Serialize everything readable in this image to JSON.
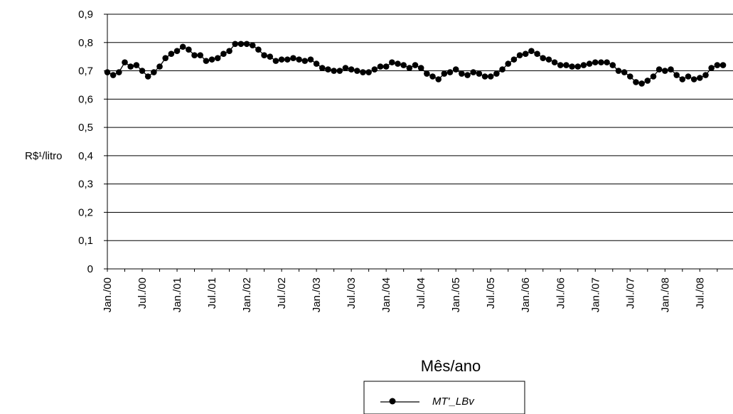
{
  "chart_data": {
    "type": "line",
    "title": "",
    "xlabel": "Mês/ano",
    "ylabel": "R$¹/litro",
    "ylim": [
      0,
      0.9
    ],
    "y_ticks": [
      "0",
      "0,1",
      "0,2",
      "0,3",
      "0,4",
      "0,5",
      "0,6",
      "0,7",
      "0,8",
      "0,9"
    ],
    "x_tick_labels": [
      "Jan./00",
      "Jul./00",
      "Jan./01",
      "Jul./01",
      "Jan./02",
      "Jul./02",
      "Jan./03",
      "Jul./03",
      "Jan./04",
      "Jul./04",
      "Jan./05",
      "Jul./05",
      "Jan./06",
      "Jul./06",
      "Jan./07",
      "Jul./07",
      "Jan./08",
      "Jul./08"
    ],
    "x_start": "2000-01",
    "grid": "horizontal",
    "legend_position": "bottom",
    "series": [
      {
        "name": "MT'_LBv",
        "color": "#000000",
        "marker": "circle",
        "values": [
          0.695,
          0.685,
          0.695,
          0.73,
          0.715,
          0.72,
          0.7,
          0.68,
          0.695,
          0.715,
          0.745,
          0.76,
          0.77,
          0.785,
          0.775,
          0.755,
          0.755,
          0.735,
          0.74,
          0.745,
          0.76,
          0.77,
          0.795,
          0.795,
          0.795,
          0.79,
          0.775,
          0.755,
          0.75,
          0.735,
          0.74,
          0.74,
          0.745,
          0.74,
          0.735,
          0.74,
          0.725,
          0.71,
          0.705,
          0.7,
          0.7,
          0.71,
          0.705,
          0.7,
          0.695,
          0.695,
          0.705,
          0.715,
          0.715,
          0.73,
          0.725,
          0.72,
          0.71,
          0.72,
          0.71,
          0.69,
          0.68,
          0.67,
          0.69,
          0.695,
          0.705,
          0.69,
          0.685,
          0.695,
          0.69,
          0.68,
          0.68,
          0.69,
          0.705,
          0.725,
          0.74,
          0.755,
          0.76,
          0.77,
          0.76,
          0.745,
          0.74,
          0.73,
          0.72,
          0.72,
          0.715,
          0.715,
          0.72,
          0.725,
          0.73,
          0.73,
          0.73,
          0.72,
          0.7,
          0.695,
          0.68,
          0.66,
          0.655,
          0.665,
          0.68,
          0.705,
          0.7,
          0.705,
          0.685,
          0.67,
          0.68,
          0.67,
          0.675,
          0.685,
          0.71,
          0.72,
          0.72
        ]
      }
    ]
  }
}
